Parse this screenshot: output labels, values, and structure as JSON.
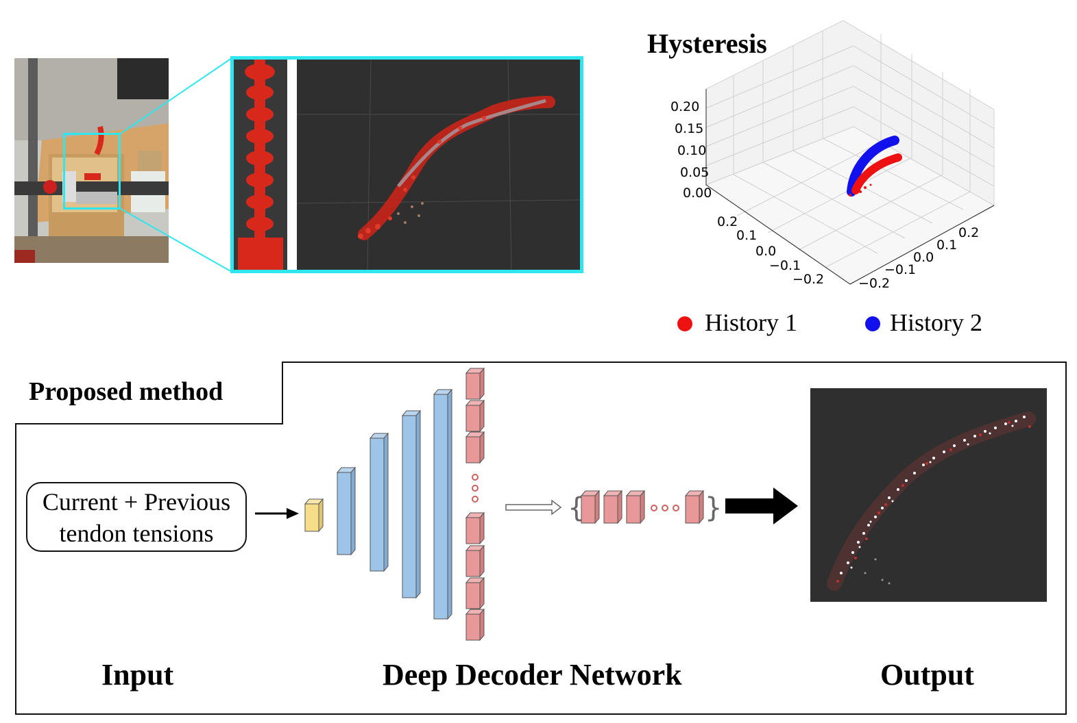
{
  "hysteresis": {
    "title": "Hysteresis",
    "z_ticks": [
      "0.20",
      "0.15",
      "0.10",
      "0.05",
      "0.00"
    ],
    "left_ticks": [
      "0.2",
      "0.1",
      "0.0",
      "−0.1",
      "−0.2"
    ],
    "right_ticks": [
      "−0.2",
      "−0.1",
      "0.0",
      "0.1",
      "0.2"
    ],
    "legend": [
      {
        "label": "History 1",
        "color": "#ee1111"
      },
      {
        "label": "History 2",
        "color": "#1111ee"
      }
    ]
  },
  "method": {
    "tag": "Proposed method",
    "input_line1": "Current + Previous",
    "input_line2": "tendon tensions",
    "input_label": "Input",
    "network_label": "Deep Decoder Network",
    "output_label": "Output"
  },
  "colors": {
    "cyan_frame": "#2ee6ee",
    "robot_red": "#d8281c",
    "input_block": "#f5dd8a",
    "hidden_block": "#9ec4e8",
    "output_block": "#e89898",
    "viewer_bg": "#2f2f2f"
  },
  "icons": [
    "ellipsis-dots-icon",
    "hollow-arrow-icon",
    "thick-arrow-icon",
    "small-arrow-icon"
  ]
}
